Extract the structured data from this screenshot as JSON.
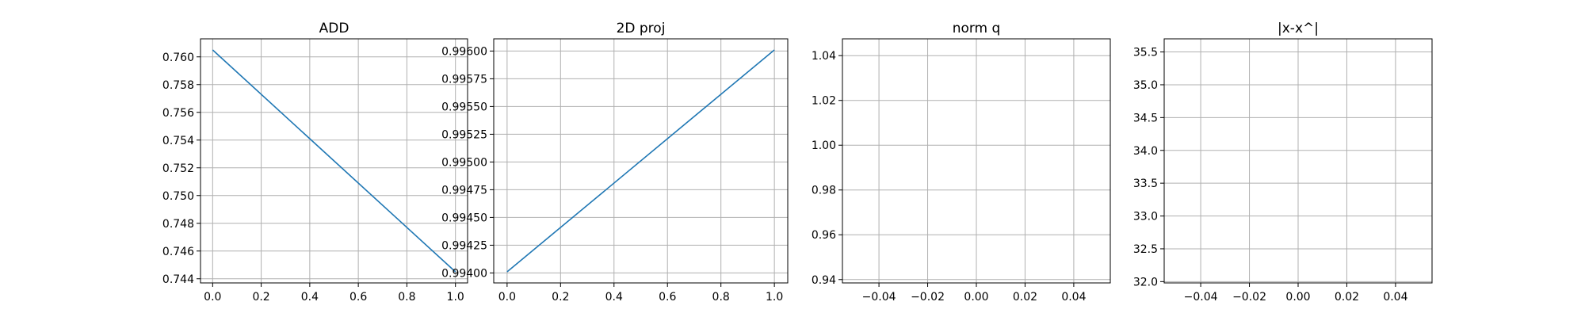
{
  "colors": {
    "line": "#1f77b4",
    "grid": "#b0b0b0",
    "axes": "#000000",
    "background": "#ffffff"
  },
  "chart_data": [
    {
      "type": "line",
      "title": "ADD",
      "xlabel": "",
      "ylabel": "",
      "grid": true,
      "xlim": [
        -0.05,
        1.05
      ],
      "ylim": [
        0.7437,
        0.7613
      ],
      "xticks": [
        0.0,
        0.2,
        0.4,
        0.6,
        0.8,
        1.0
      ],
      "xtick_labels": [
        "0.0",
        "0.2",
        "0.4",
        "0.6",
        "0.8",
        "1.0"
      ],
      "yticks": [
        0.744,
        0.746,
        0.748,
        0.75,
        0.752,
        0.754,
        0.756,
        0.758,
        0.76
      ],
      "ytick_labels": [
        "0.744",
        "0.746",
        "0.748",
        "0.750",
        "0.752",
        "0.754",
        "0.756",
        "0.758",
        "0.760"
      ],
      "series": [
        {
          "x": [
            0,
            1
          ],
          "values": [
            0.7605,
            0.7445
          ]
        }
      ]
    },
    {
      "type": "line",
      "title": "2D proj",
      "xlabel": "",
      "ylabel": "",
      "grid": true,
      "xlim": [
        -0.05,
        1.05
      ],
      "ylim": [
        0.99391,
        0.99611
      ],
      "xticks": [
        0.0,
        0.2,
        0.4,
        0.6,
        0.8,
        1.0
      ],
      "xtick_labels": [
        "0.0",
        "0.2",
        "0.4",
        "0.6",
        "0.8",
        "1.0"
      ],
      "yticks": [
        0.994,
        0.99425,
        0.9945,
        0.99475,
        0.995,
        0.99525,
        0.9955,
        0.99575,
        0.996
      ],
      "ytick_labels": [
        "0.99400",
        "0.99425",
        "0.99450",
        "0.99475",
        "0.99500",
        "0.99525",
        "0.99550",
        "0.99575",
        "0.99600"
      ],
      "series": [
        {
          "x": [
            0,
            1
          ],
          "values": [
            0.99401,
            0.99601
          ]
        }
      ]
    },
    {
      "type": "line",
      "title": "norm q",
      "xlabel": "",
      "ylabel": "",
      "grid": true,
      "xlim": [
        -0.055,
        0.055
      ],
      "ylim": [
        0.9385,
        1.0475
      ],
      "xticks": [
        -0.04,
        -0.02,
        0.0,
        0.02,
        0.04
      ],
      "xtick_labels": [
        "−0.04",
        "−0.02",
        "0.00",
        "0.02",
        "0.04"
      ],
      "yticks": [
        0.94,
        0.96,
        0.98,
        1.0,
        1.02,
        1.04
      ],
      "ytick_labels": [
        "0.94",
        "0.96",
        "0.98",
        "1.00",
        "1.02",
        "1.04"
      ],
      "series": [
        {
          "x": [],
          "values": []
        }
      ]
    },
    {
      "type": "line",
      "title": "|x-x^|",
      "xlabel": "",
      "ylabel": "",
      "grid": true,
      "xlim": [
        -0.055,
        0.055
      ],
      "ylim": [
        31.98,
        35.7
      ],
      "xticks": [
        -0.04,
        -0.02,
        0.0,
        0.02,
        0.04
      ],
      "xtick_labels": [
        "−0.04",
        "−0.02",
        "0.00",
        "0.02",
        "0.04"
      ],
      "yticks": [
        32.0,
        32.5,
        33.0,
        33.5,
        34.0,
        34.5,
        35.0,
        35.5
      ],
      "ytick_labels": [
        "32.0",
        "32.5",
        "33.0",
        "33.5",
        "34.0",
        "34.5",
        "35.0",
        "35.5"
      ],
      "series": [
        {
          "x": [],
          "values": []
        }
      ]
    }
  ]
}
